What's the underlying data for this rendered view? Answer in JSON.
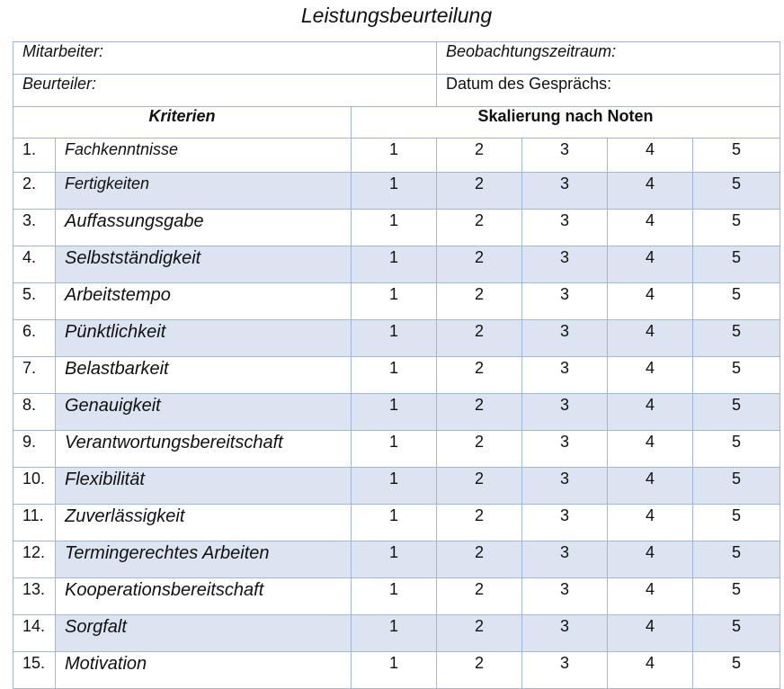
{
  "title": "Leistungsbeurteilung",
  "header": {
    "mitarbeiter": "Mitarbeiter:",
    "beobachtung": "Beobachtungszeitraum:",
    "beurteiler": "Beurteiler:",
    "datum": "Datum des Gesprächs:"
  },
  "columns": {
    "kriterien": "Kriterien",
    "skalierung": "Skalierung nach Noten"
  },
  "grades": [
    "1",
    "2",
    "3",
    "4",
    "5"
  ],
  "criteria": [
    {
      "num": "1.",
      "name": "Fachkenntnisse"
    },
    {
      "num": "2.",
      "name": "Fertigkeiten"
    },
    {
      "num": "3.",
      "name": "Auffassungsgabe"
    },
    {
      "num": "4.",
      "name": "Selbstständigkeit"
    },
    {
      "num": "5.",
      "name": "Arbeitstempo"
    },
    {
      "num": "6.",
      "name": "Pünktlichkeit"
    },
    {
      "num": "7.",
      "name": "Belastbarkeit"
    },
    {
      "num": "8.",
      "name": "Genauigkeit"
    },
    {
      "num": "9.",
      "name": "Verantwortungsbereitschaft"
    },
    {
      "num": "10.",
      "name": "Flexibilität"
    },
    {
      "num": "11.",
      "name": "Zuverlässigkeit"
    },
    {
      "num": "12.",
      "name": "Termingerechtes Arbeiten"
    },
    {
      "num": "13.",
      "name": "Kooperationsbereitschaft"
    },
    {
      "num": "14.",
      "name": "Sorgfalt"
    },
    {
      "num": "15.",
      "name": "Motivation"
    }
  ]
}
